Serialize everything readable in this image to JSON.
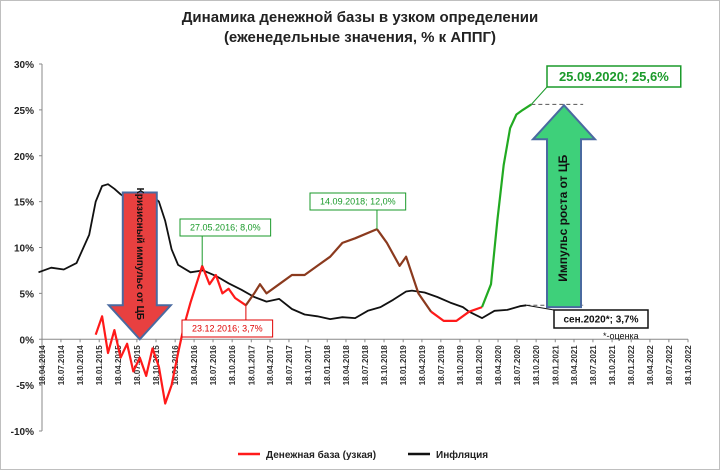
{
  "chart_data": {
    "type": "line",
    "title": "Динамика денежной базы в узком определении",
    "subtitle": "(еженедельные значения, % к АППГ)",
    "xlabel": "",
    "ylabel": "",
    "ylim": [
      -10,
      30
    ],
    "y_ticks": [
      -10,
      -5,
      0,
      5,
      10,
      15,
      20,
      25,
      30
    ],
    "y_tick_format": "{v}%",
    "grid": false,
    "legend_position": "bottom",
    "x_tick_labels": [
      "18.04.2014",
      "18.07.2014",
      "18.10.2014",
      "18.01.2015",
      "18.04.2015",
      "18.07.2015",
      "18.10.2015",
      "18.01.2016",
      "18.04.2016",
      "18.07.2016",
      "18.10.2016",
      "18.01.2017",
      "18.04.2017",
      "18.07.2017",
      "18.10.2017",
      "18.01.2018",
      "18.04.2018",
      "18.07.2018",
      "18.10.2018",
      "18.01.2019",
      "18.04.2019",
      "18.07.2019",
      "18.10.2019",
      "18.01.2020",
      "18.04.2020",
      "18.07.2020",
      "18.10.2020",
      "18.01.2021",
      "18.04.2021",
      "18.07.2021",
      "18.10.2021",
      "18.01.2022",
      "18.04.2022",
      "18.07.2022",
      "18.10.2022"
    ],
    "series": [
      {
        "name": "Денежная база (узкая)",
        "color": "#ff1a1a",
        "color_segments": [
          {
            "from": "2015-01-01",
            "to": "2016-12-23",
            "color": "#ff1a1a"
          },
          {
            "from": "2016-12-23",
            "to": "2018-09-14",
            "color": "#8b3a1e"
          },
          {
            "from": "2018-09-14",
            "to": "2019-06-01",
            "color": "#8b3a1e"
          },
          {
            "from": "2019-06-01",
            "to": "2020-02-01",
            "color": "#ff1a1a"
          },
          {
            "from": "2020-02-01",
            "to": "2020-09-25",
            "color": "#22aa22"
          }
        ],
        "points": [
          [
            "2015-01-01",
            0.5
          ],
          [
            "2015-02-01",
            2.5
          ],
          [
            "2015-03-01",
            -1.5
          ],
          [
            "2015-04-01",
            1.0
          ],
          [
            "2015-05-01",
            -2.0
          ],
          [
            "2015-06-01",
            -0.5
          ],
          [
            "2015-07-01",
            -3.5
          ],
          [
            "2015-08-01",
            -2.0
          ],
          [
            "2015-09-01",
            -4.0
          ],
          [
            "2015-10-01",
            -1.0
          ],
          [
            "2015-11-01",
            -3.0
          ],
          [
            "2015-12-01",
            -7.0
          ],
          [
            "2016-01-01",
            -5.0
          ],
          [
            "2016-02-01",
            -1.5
          ],
          [
            "2016-03-01",
            1.5
          ],
          [
            "2016-04-01",
            4.0
          ],
          [
            "2016-05-27",
            8.0
          ],
          [
            "2016-07-01",
            6.0
          ],
          [
            "2016-08-01",
            7.0
          ],
          [
            "2016-09-01",
            5.0
          ],
          [
            "2016-10-01",
            5.5
          ],
          [
            "2016-11-01",
            4.5
          ],
          [
            "2016-12-23",
            3.7
          ],
          [
            "2017-02-01",
            5.0
          ],
          [
            "2017-03-01",
            6.0
          ],
          [
            "2017-04-01",
            5.0
          ],
          [
            "2017-06-01",
            6.0
          ],
          [
            "2017-08-01",
            7.0
          ],
          [
            "2017-10-01",
            7.0
          ],
          [
            "2017-12-01",
            8.0
          ],
          [
            "2018-02-01",
            9.0
          ],
          [
            "2018-04-01",
            10.5
          ],
          [
            "2018-06-01",
            11.0
          ],
          [
            "2018-09-14",
            12.0
          ],
          [
            "2018-11-01",
            10.5
          ],
          [
            "2019-01-01",
            8.0
          ],
          [
            "2019-02-01",
            9.0
          ],
          [
            "2019-04-01",
            5.0
          ],
          [
            "2019-06-01",
            3.0
          ],
          [
            "2019-08-01",
            2.0
          ],
          [
            "2019-10-01",
            2.0
          ],
          [
            "2019-12-01",
            3.0
          ],
          [
            "2020-02-01",
            3.5
          ],
          [
            "2020-03-15",
            6.0
          ],
          [
            "2020-04-15",
            13.0
          ],
          [
            "2020-05-15",
            19.0
          ],
          [
            "2020-06-15",
            23.0
          ],
          [
            "2020-07-15",
            24.5
          ],
          [
            "2020-08-15",
            25.0
          ],
          [
            "2020-09-25",
            25.6
          ]
        ]
      },
      {
        "name": "Инфляция",
        "color": "#111111",
        "points": [
          [
            "2014-04-01",
            7.3
          ],
          [
            "2014-06-01",
            7.8
          ],
          [
            "2014-08-01",
            7.6
          ],
          [
            "2014-10-01",
            8.3
          ],
          [
            "2014-12-01",
            11.4
          ],
          [
            "2015-01-01",
            15.0
          ],
          [
            "2015-02-01",
            16.7
          ],
          [
            "2015-03-01",
            16.9
          ],
          [
            "2015-04-01",
            16.4
          ],
          [
            "2015-05-01",
            15.8
          ],
          [
            "2015-06-01",
            15.3
          ],
          [
            "2015-07-01",
            15.6
          ],
          [
            "2015-08-01",
            15.8
          ],
          [
            "2015-09-01",
            15.7
          ],
          [
            "2015-10-01",
            15.6
          ],
          [
            "2015-11-01",
            15.0
          ],
          [
            "2015-12-01",
            12.9
          ],
          [
            "2016-01-01",
            9.8
          ],
          [
            "2016-02-01",
            8.1
          ],
          [
            "2016-04-01",
            7.3
          ],
          [
            "2016-06-01",
            7.5
          ],
          [
            "2016-08-01",
            6.9
          ],
          [
            "2016-10-01",
            6.1
          ],
          [
            "2016-12-01",
            5.4
          ],
          [
            "2017-02-01",
            4.6
          ],
          [
            "2017-04-01",
            4.1
          ],
          [
            "2017-06-01",
            4.4
          ],
          [
            "2017-08-01",
            3.3
          ],
          [
            "2017-10-01",
            2.7
          ],
          [
            "2017-12-01",
            2.5
          ],
          [
            "2018-02-01",
            2.2
          ],
          [
            "2018-04-01",
            2.4
          ],
          [
            "2018-06-01",
            2.3
          ],
          [
            "2018-08-01",
            3.1
          ],
          [
            "2018-10-01",
            3.5
          ],
          [
            "2018-12-01",
            4.3
          ],
          [
            "2019-02-01",
            5.2
          ],
          [
            "2019-03-01",
            5.3
          ],
          [
            "2019-05-01",
            5.1
          ],
          [
            "2019-07-01",
            4.6
          ],
          [
            "2019-09-01",
            4.0
          ],
          [
            "2019-11-01",
            3.5
          ],
          [
            "2019-12-01",
            3.0
          ],
          [
            "2020-02-01",
            2.3
          ],
          [
            "2020-04-01",
            3.1
          ],
          [
            "2020-06-01",
            3.2
          ],
          [
            "2020-08-01",
            3.6
          ],
          [
            "2020-09-01",
            3.7
          ]
        ]
      }
    ],
    "reference_lines": [
      {
        "from": "2020-09-25",
        "to": "2021-06-01",
        "y": 25.6
      },
      {
        "from": "2020-09-01",
        "to": "2021-06-01",
        "y": 3.7
      }
    ],
    "annotations": [
      {
        "text": "27.05.2016; 8,0%",
        "date": "2016-05-27",
        "value": 8.0,
        "color": "#1a9a2a",
        "bold": false
      },
      {
        "text": "23.12.2016; 3,7%",
        "date": "2016-12-23",
        "value": 3.7,
        "color": "#e00000",
        "bold": false
      },
      {
        "text": "14.09.2018; 12,0%",
        "date": "2018-09-14",
        "value": 12.0,
        "color": "#1a9a2a",
        "bold": false
      },
      {
        "text": "25.09.2020; 25,6%",
        "date": "2020-09-25",
        "value": 25.6,
        "color": "#1a9a2a",
        "bold": true
      },
      {
        "text": "сен.2020*; 3,7%",
        "date": "2020-09-01",
        "value": 3.7,
        "color": "#111111",
        "bold": true
      }
    ],
    "arrows": [
      {
        "label": "Кризисный импульс от ЦБ",
        "direction": "down",
        "date": "2015-08-01",
        "from": 16.0,
        "to": 0.0,
        "color": "#e84040",
        "border": "#4a6aa0"
      },
      {
        "label": "Импульс роста от ЦБ",
        "direction": "up",
        "date": "2021-03-01",
        "from": 3.5,
        "to": 25.5,
        "color": "#3ed07a",
        "border": "#4a6aa0"
      }
    ],
    "footnote": "*-оценка"
  }
}
